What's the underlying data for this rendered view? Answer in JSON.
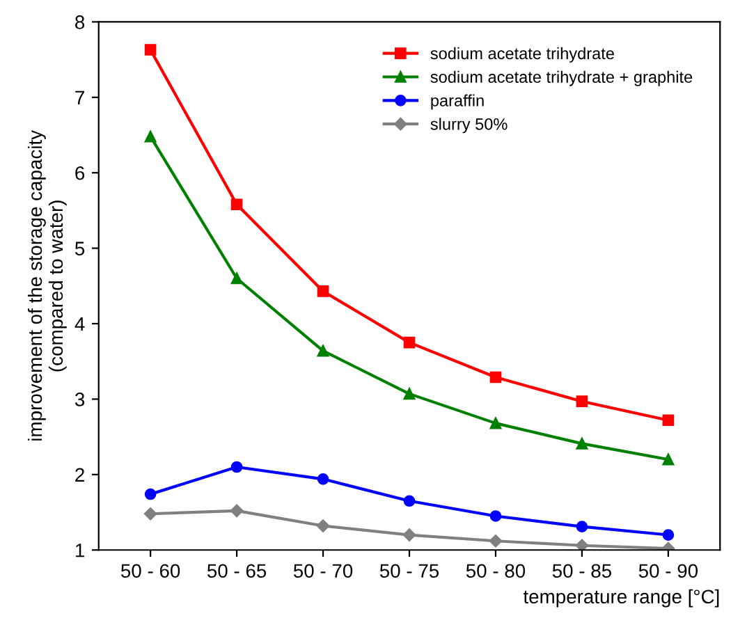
{
  "chart_data": {
    "type": "line",
    "xlabel": "temperature range [°C]",
    "ylabel": "improvement of the storage capacity\n(compared to water)",
    "categories": [
      "50 - 60",
      "50 - 65",
      "50 - 70",
      "50 - 75",
      "50 - 80",
      "50 - 85",
      "50 - 90"
    ],
    "series": [
      {
        "name": "sodium acetate trihydrate",
        "color": "#ff0000",
        "marker": "square",
        "values": [
          7.63,
          5.58,
          4.43,
          3.75,
          3.29,
          2.97,
          2.72
        ]
      },
      {
        "name": "sodium acetate trihydrate + graphite",
        "color": "#008000",
        "marker": "triangle",
        "values": [
          6.48,
          4.6,
          3.64,
          3.07,
          2.68,
          2.41,
          2.2
        ]
      },
      {
        "name": "paraffin",
        "color": "#0000ff",
        "marker": "circle",
        "values": [
          1.74,
          2.1,
          1.94,
          1.65,
          1.45,
          1.31,
          1.2
        ]
      },
      {
        "name": "slurry 50%",
        "color": "#808080",
        "marker": "diamond",
        "values": [
          1.48,
          1.52,
          1.32,
          1.2,
          1.12,
          1.06,
          1.02
        ]
      }
    ],
    "ylim": [
      1,
      8
    ],
    "yticks": [
      1,
      2,
      3,
      4,
      5,
      6,
      7,
      8
    ],
    "grid": false,
    "legend": "top right",
    "line_style": "solid"
  }
}
